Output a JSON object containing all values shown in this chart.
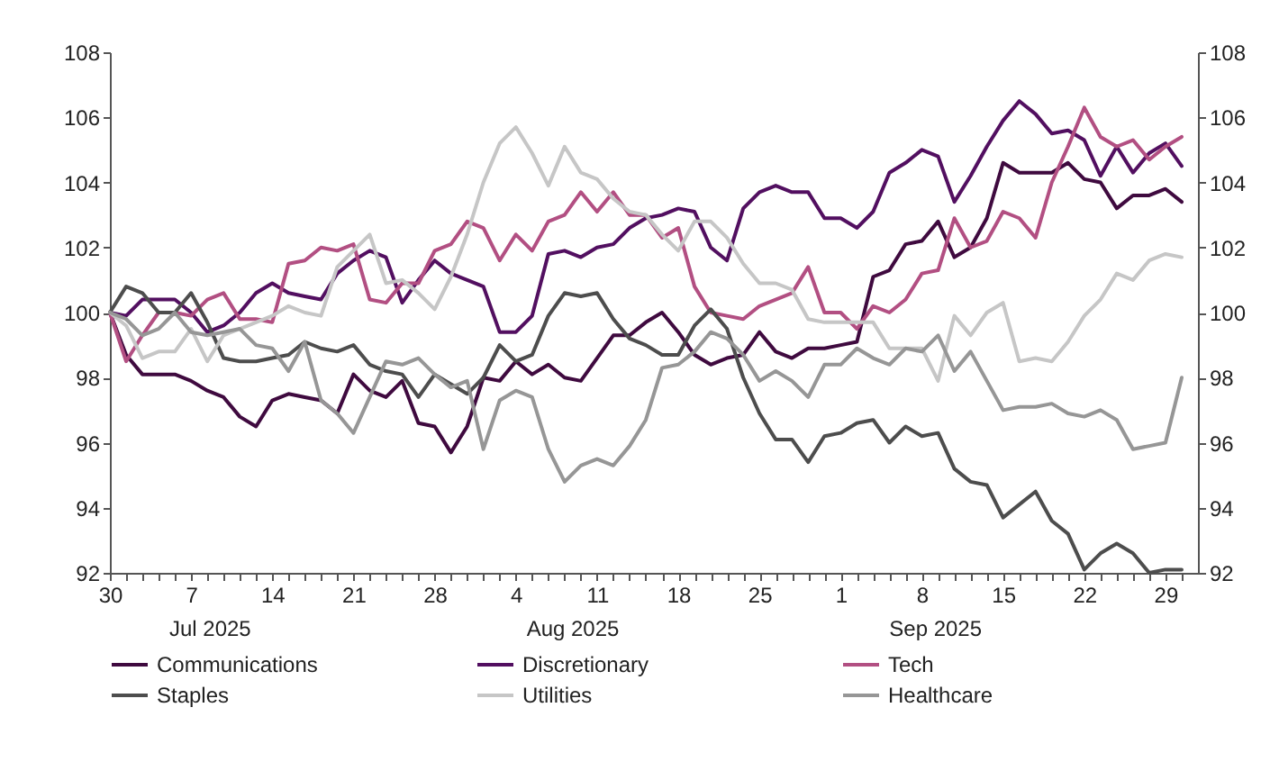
{
  "chart_data": {
    "type": "line",
    "categories": [
      "30",
      null,
      null,
      null,
      null,
      "7",
      null,
      null,
      null,
      null,
      "14",
      null,
      null,
      null,
      null,
      "21",
      null,
      null,
      null,
      null,
      "28",
      null,
      null,
      null,
      null,
      "4",
      null,
      null,
      null,
      null,
      "11",
      null,
      null,
      null,
      null,
      "18",
      null,
      null,
      null,
      null,
      "25",
      null,
      null,
      null,
      null,
      "1",
      null,
      null,
      null,
      null,
      "8",
      null,
      null,
      null,
      null,
      "15",
      null,
      null,
      null,
      null,
      "22",
      null,
      null,
      null,
      null,
      "29",
      null
    ],
    "series": [
      {
        "name": "Communications",
        "color": "#3f0a3f",
        "values": [
          100.0,
          98.7,
          98.1,
          98.1,
          98.1,
          97.9,
          97.6,
          97.4,
          96.8,
          96.5,
          97.3,
          97.5,
          97.4,
          97.3,
          96.9,
          98.1,
          97.6,
          97.4,
          97.9,
          96.6,
          96.5,
          95.7,
          96.5,
          98.0,
          97.9,
          98.5,
          98.1,
          98.4,
          98.0,
          97.9,
          98.6,
          99.3,
          99.3,
          99.7,
          100.0,
          99.4,
          98.7,
          98.4,
          98.6,
          98.7,
          99.4,
          98.8,
          98.6,
          98.9,
          98.9,
          99.0,
          99.1,
          101.1,
          101.3,
          102.1,
          102.2,
          102.8,
          101.7,
          102.0,
          102.9,
          104.6,
          104.3,
          104.3,
          104.3,
          104.6,
          104.1,
          104.0,
          103.2,
          103.6,
          103.6,
          103.8,
          103.4
        ]
      },
      {
        "name": "Discretionary",
        "color": "#520f60",
        "values": [
          100.0,
          99.9,
          100.4,
          100.4,
          100.4,
          100.0,
          99.4,
          99.6,
          100.0,
          100.6,
          100.9,
          100.6,
          100.5,
          100.4,
          101.2,
          101.6,
          101.9,
          101.7,
          100.3,
          101.0,
          101.6,
          101.2,
          101.0,
          100.8,
          99.4,
          99.4,
          99.9,
          101.8,
          101.9,
          101.7,
          102.0,
          102.1,
          102.6,
          102.9,
          103.0,
          103.2,
          103.1,
          102.0,
          101.6,
          103.2,
          103.7,
          103.9,
          103.7,
          103.7,
          102.9,
          102.9,
          102.6,
          103.1,
          104.3,
          104.6,
          105.0,
          104.8,
          103.4,
          104.2,
          105.1,
          105.9,
          106.5,
          106.1,
          105.5,
          105.6,
          105.3,
          104.2,
          105.1,
          104.3,
          104.9,
          105.2,
          104.5
        ]
      },
      {
        "name": "Tech",
        "color": "#b24f82",
        "values": [
          100.0,
          98.5,
          99.3,
          100.0,
          100.0,
          99.9,
          100.4,
          100.6,
          99.8,
          99.8,
          99.7,
          101.5,
          101.6,
          102.0,
          101.9,
          102.1,
          100.4,
          100.3,
          100.9,
          100.9,
          101.9,
          102.1,
          102.8,
          102.6,
          101.6,
          102.4,
          101.9,
          102.8,
          103.0,
          103.7,
          103.1,
          103.7,
          103.0,
          103.0,
          102.3,
          102.6,
          100.8,
          100.0,
          99.9,
          99.8,
          100.2,
          100.4,
          100.6,
          101.4,
          100.0,
          100.0,
          99.5,
          100.2,
          100.0,
          100.4,
          101.2,
          101.3,
          102.9,
          102.0,
          102.2,
          103.1,
          102.9,
          102.3,
          104.0,
          105.1,
          106.3,
          105.4,
          105.1,
          105.3,
          104.7,
          105.1,
          105.4
        ]
      },
      {
        "name": "Staples",
        "color": "#4d4d4d",
        "values": [
          100.0,
          100.8,
          100.6,
          100.0,
          100.0,
          100.6,
          99.7,
          98.6,
          98.5,
          98.5,
          98.6,
          98.7,
          99.1,
          98.9,
          98.8,
          99.0,
          98.4,
          98.2,
          98.1,
          97.4,
          98.1,
          97.8,
          97.5,
          98.0,
          99.0,
          98.5,
          98.7,
          99.9,
          100.6,
          100.5,
          100.6,
          99.8,
          99.2,
          99.0,
          98.7,
          98.7,
          99.6,
          100.1,
          99.5,
          98.0,
          96.9,
          96.1,
          96.1,
          95.4,
          96.2,
          96.3,
          96.6,
          96.7,
          96.0,
          96.5,
          96.2,
          96.3,
          95.2,
          94.8,
          94.7,
          93.7,
          94.1,
          94.5,
          93.6,
          93.2,
          92.1,
          92.6,
          92.9,
          92.6,
          92.0,
          92.1,
          92.1
        ]
      },
      {
        "name": "Utilities",
        "color": "#c6c6c6",
        "values": [
          100.0,
          99.6,
          98.6,
          98.8,
          98.8,
          99.5,
          98.5,
          99.3,
          99.5,
          99.7,
          99.9,
          100.2,
          100.0,
          99.9,
          101.4,
          101.9,
          102.4,
          100.9,
          101.0,
          100.6,
          100.1,
          101.1,
          102.4,
          104.0,
          105.2,
          105.7,
          104.9,
          103.9,
          105.1,
          104.3,
          104.1,
          103.5,
          103.1,
          103.0,
          102.4,
          101.9,
          102.8,
          102.8,
          102.3,
          101.5,
          100.9,
          100.9,
          100.7,
          99.8,
          99.7,
          99.7,
          99.7,
          99.7,
          98.9,
          98.9,
          98.9,
          97.9,
          99.9,
          99.3,
          100.0,
          100.3,
          98.5,
          98.6,
          98.5,
          99.1,
          99.9,
          100.4,
          101.2,
          101.0,
          101.6,
          101.8,
          101.7
        ]
      },
      {
        "name": "Healthcare",
        "color": "#969696",
        "values": [
          100.0,
          99.8,
          99.3,
          99.5,
          100.0,
          99.4,
          99.3,
          99.4,
          99.5,
          99.0,
          98.9,
          98.2,
          99.1,
          97.3,
          96.9,
          96.3,
          97.4,
          98.5,
          98.4,
          98.6,
          98.1,
          97.7,
          97.9,
          95.8,
          97.3,
          97.6,
          97.4,
          95.8,
          94.8,
          95.3,
          95.5,
          95.3,
          95.9,
          96.7,
          98.3,
          98.4,
          98.8,
          99.4,
          99.2,
          98.7,
          97.9,
          98.2,
          97.9,
          97.4,
          98.4,
          98.4,
          98.9,
          98.6,
          98.4,
          98.9,
          98.8,
          99.3,
          98.2,
          98.8,
          97.9,
          97.0,
          97.1,
          97.1,
          97.2,
          96.9,
          96.8,
          97.0,
          96.7,
          95.8,
          95.9,
          96.0,
          98.0
        ]
      }
    ],
    "ylim": [
      92,
      108
    ],
    "yticks": [
      92,
      94,
      96,
      98,
      100,
      102,
      104,
      106,
      108
    ],
    "y2lim": [
      92,
      108
    ],
    "y2ticks": [
      92,
      94,
      96,
      98,
      100,
      102,
      104,
      106,
      108
    ],
    "annotations": [
      "Jul 2025",
      "Aug 2025",
      "Sep 2025"
    ],
    "grid": false,
    "legend": "bottom",
    "line_style": "solid",
    "marker": "none"
  }
}
